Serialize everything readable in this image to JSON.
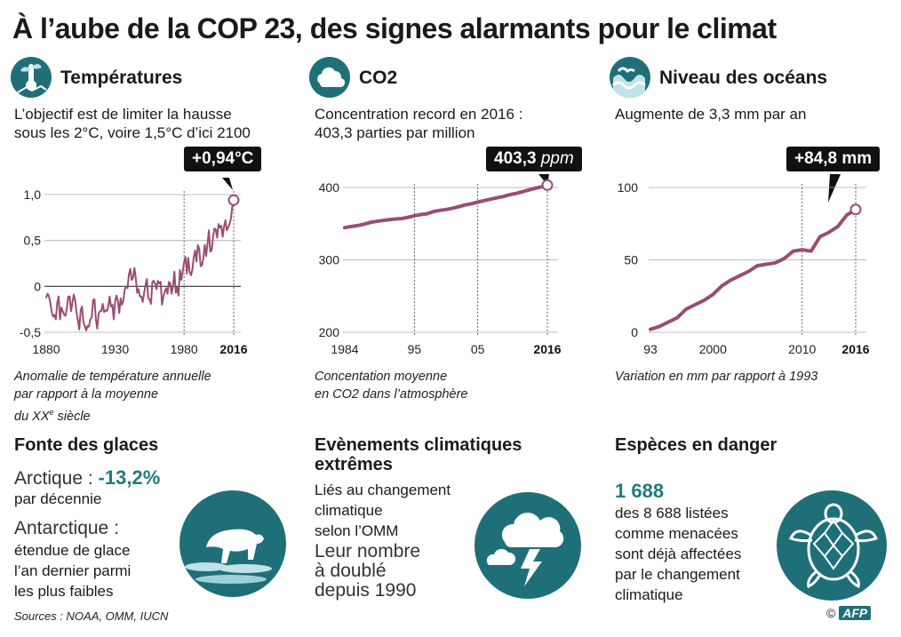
{
  "title": "À l’aube de la COP 23, des signes alarmants pour le climat",
  "colors": {
    "line": "#9a4d74",
    "teal": "#1f6f78",
    "accent_text": "#1f7a84",
    "grid": "#aaaaaa",
    "callout_bg": "#111111"
  },
  "panels": {
    "temperature": {
      "icon": "thermometer-plant-icon",
      "heading": "Températures",
      "subtitle_1": "L’objectif est de limiter la hausse",
      "subtitle_2": "sous les 2°C, voire 1,5°C d’ici 2100",
      "callout": "+0,94°C",
      "caption_1": "Anomalie de température annuelle",
      "caption_2": "par rapport à la moyenne",
      "caption_3": "du XX",
      "caption_3_sup": "e",
      "caption_3_end": " siècle"
    },
    "co2": {
      "icon": "cloud-icon",
      "heading": "CO2",
      "subtitle_1": "Concentration record en 2016 :",
      "subtitle_2": "403,3 parties par million",
      "callout_value": "403,3",
      "callout_unit": "ppm",
      "caption_1": "Concentation moyenne",
      "caption_2": "en CO2 dans l’atmosphère"
    },
    "ocean": {
      "icon": "waves-icon",
      "heading": "Niveau des océans",
      "subtitle_1": "Augmente de 3,3 mm par an",
      "callout": "+84,8 mm",
      "caption_1": "Variation en mm par rapport à 1993"
    }
  },
  "chart_data": [
    {
      "type": "line",
      "title": "Températures",
      "ylim": [
        -0.5,
        1.0
      ],
      "xlim": [
        1880,
        2016
      ],
      "y_ticks": [
        "1,0",
        "0,5",
        "0",
        "-0,5"
      ],
      "y_tick_values": [
        1.0,
        0.5,
        0,
        -0.5
      ],
      "x_ticks": [
        "1880",
        "1930",
        "1980",
        "2016"
      ],
      "x_tick_values": [
        1880,
        1930,
        1980,
        2016
      ],
      "x": [
        1880,
        1881,
        1882,
        1883,
        1884,
        1885,
        1886,
        1887,
        1888,
        1889,
        1890,
        1891,
        1892,
        1893,
        1894,
        1895,
        1896,
        1897,
        1898,
        1899,
        1900,
        1901,
        1902,
        1903,
        1904,
        1905,
        1906,
        1907,
        1908,
        1909,
        1910,
        1911,
        1912,
        1913,
        1914,
        1915,
        1916,
        1917,
        1918,
        1919,
        1920,
        1921,
        1922,
        1923,
        1924,
        1925,
        1926,
        1927,
        1928,
        1929,
        1930,
        1931,
        1932,
        1933,
        1934,
        1935,
        1936,
        1937,
        1938,
        1939,
        1940,
        1941,
        1942,
        1943,
        1944,
        1945,
        1946,
        1947,
        1948,
        1949,
        1950,
        1951,
        1952,
        1953,
        1954,
        1955,
        1956,
        1957,
        1958,
        1959,
        1960,
        1961,
        1962,
        1963,
        1964,
        1965,
        1966,
        1967,
        1968,
        1969,
        1970,
        1971,
        1972,
        1973,
        1974,
        1975,
        1976,
        1977,
        1978,
        1979,
        1980,
        1981,
        1982,
        1983,
        1984,
        1985,
        1986,
        1987,
        1988,
        1989,
        1990,
        1991,
        1992,
        1993,
        1994,
        1995,
        1996,
        1997,
        1998,
        1999,
        2000,
        2001,
        2002,
        2003,
        2004,
        2005,
        2006,
        2007,
        2008,
        2009,
        2010,
        2011,
        2012,
        2013,
        2014,
        2015,
        2016
      ],
      "y": [
        -0.12,
        -0.08,
        -0.11,
        -0.18,
        -0.28,
        -0.33,
        -0.31,
        -0.36,
        -0.18,
        -0.11,
        -0.36,
        -0.23,
        -0.27,
        -0.31,
        -0.32,
        -0.23,
        -0.11,
        -0.11,
        -0.27,
        -0.18,
        -0.09,
        -0.15,
        -0.28,
        -0.37,
        -0.47,
        -0.26,
        -0.22,
        -0.39,
        -0.43,
        -0.48,
        -0.43,
        -0.44,
        -0.36,
        -0.34,
        -0.15,
        -0.14,
        -0.36,
        -0.46,
        -0.3,
        -0.27,
        -0.27,
        -0.19,
        -0.28,
        -0.26,
        -0.27,
        -0.22,
        -0.11,
        -0.22,
        -0.2,
        -0.36,
        -0.16,
        -0.1,
        -0.16,
        -0.29,
        -0.13,
        -0.2,
        -0.15,
        -0.03,
        0.0,
        -0.02,
        0.13,
        0.19,
        0.07,
        0.09,
        0.2,
        0.09,
        -0.07,
        -0.03,
        -0.11,
        -0.11,
        -0.17,
        -0.07,
        0.01,
        0.08,
        -0.13,
        -0.14,
        -0.19,
        0.05,
        0.06,
        0.03,
        -0.03,
        0.06,
        0.03,
        0.05,
        -0.2,
        -0.11,
        -0.06,
        -0.02,
        -0.08,
        0.05,
        0.03,
        -0.08,
        0.01,
        0.16,
        -0.07,
        -0.01,
        -0.1,
        0.18,
        0.07,
        0.16,
        0.26,
        0.32,
        0.14,
        0.31,
        0.16,
        0.12,
        0.18,
        0.32,
        0.39,
        0.27,
        0.45,
        0.41,
        0.22,
        0.23,
        0.31,
        0.45,
        0.33,
        0.46,
        0.61,
        0.38,
        0.39,
        0.53,
        0.63,
        0.62,
        0.53,
        0.68,
        0.64,
        0.66,
        0.54,
        0.65,
        0.72,
        0.61,
        0.64,
        0.68,
        0.74,
        0.87,
        0.94
      ]
    },
    {
      "type": "line",
      "title": "CO2",
      "ylim": [
        200,
        400
      ],
      "xlim": [
        1984,
        2016
      ],
      "y_ticks": [
        "400",
        "300",
        "200"
      ],
      "y_tick_values": [
        400,
        300,
        200
      ],
      "x_ticks": [
        "1984",
        "95",
        "05",
        "2016"
      ],
      "x_tick_values": [
        1984,
        1995,
        2005,
        2016
      ],
      "x": [
        1984,
        1985,
        1986,
        1987,
        1988,
        1989,
        1990,
        1991,
        1992,
        1993,
        1994,
        1995,
        1996,
        1997,
        1998,
        1999,
        2000,
        2001,
        2002,
        2003,
        2004,
        2005,
        2006,
        2007,
        2008,
        2009,
        2010,
        2011,
        2012,
        2013,
        2014,
        2015,
        2016
      ],
      "y": [
        344.6,
        346.0,
        347.4,
        349.2,
        351.6,
        353.1,
        354.4,
        355.6,
        356.4,
        357.1,
        358.8,
        360.8,
        362.6,
        363.7,
        366.7,
        368.4,
        369.6,
        371.3,
        373.4,
        375.8,
        377.5,
        379.8,
        381.9,
        383.8,
        385.6,
        387.4,
        389.9,
        391.7,
        393.9,
        396.5,
        398.7,
        400.8,
        403.3
      ]
    },
    {
      "type": "line",
      "title": "Niveau des océans",
      "ylim": [
        0,
        100
      ],
      "xlim": [
        1993,
        2016
      ],
      "y_ticks": [
        "100",
        "50",
        "0"
      ],
      "y_tick_values": [
        100,
        50,
        0
      ],
      "x_ticks": [
        "93",
        "2000",
        "2010",
        "2016"
      ],
      "x_tick_values": [
        1993,
        2000,
        2010,
        2016
      ],
      "x": [
        1993,
        1994,
        1995,
        1996,
        1997,
        1998,
        1999,
        2000,
        2001,
        2002,
        2003,
        2004,
        2005,
        2006,
        2007,
        2008,
        2009,
        2010,
        2011,
        2012,
        2013,
        2014,
        2015,
        2016
      ],
      "y": [
        2,
        4,
        7,
        10,
        16,
        19,
        22,
        26,
        32,
        36,
        39,
        42,
        46,
        47,
        48,
        51,
        56,
        57,
        56,
        66,
        69,
        73,
        81,
        84.8
      ]
    }
  ],
  "bottom": {
    "glaces": {
      "heading": "Fonte des glaces",
      "arctic_label": "Arctique : ",
      "arctic_value": "-13,2%",
      "arctic_unit": "par décennie",
      "antarctic_label": "Antarctique :",
      "antarctic_1": "étendue de glace",
      "antarctic_2": "l’an dernier parmi",
      "antarctic_3": "les plus faibles",
      "icon": "polar-bear-icon"
    },
    "evenements": {
      "heading_1": "Evènements climatiques",
      "heading_2": "extrêmes",
      "line_1": "Liés au changement",
      "line_2": "climatique",
      "line_3": "selon l’OMM",
      "big_1": "Leur nombre",
      "big_2": "à doublé",
      "big_3": "depuis 1990",
      "icon": "storm-cloud-icon"
    },
    "especes": {
      "heading": "Espèces en danger",
      "value": "1 688",
      "line_1": "des 8 688 listées",
      "line_2": "comme menacées",
      "line_3": "sont déjà affectées",
      "line_4": "par le changement",
      "line_5": "climatique",
      "icon": "sea-turtle-icon"
    }
  },
  "sources": "Sources : NOAA, OMM, IUCN",
  "credit": "© AFP",
  "credit_logo_text": "AFP"
}
